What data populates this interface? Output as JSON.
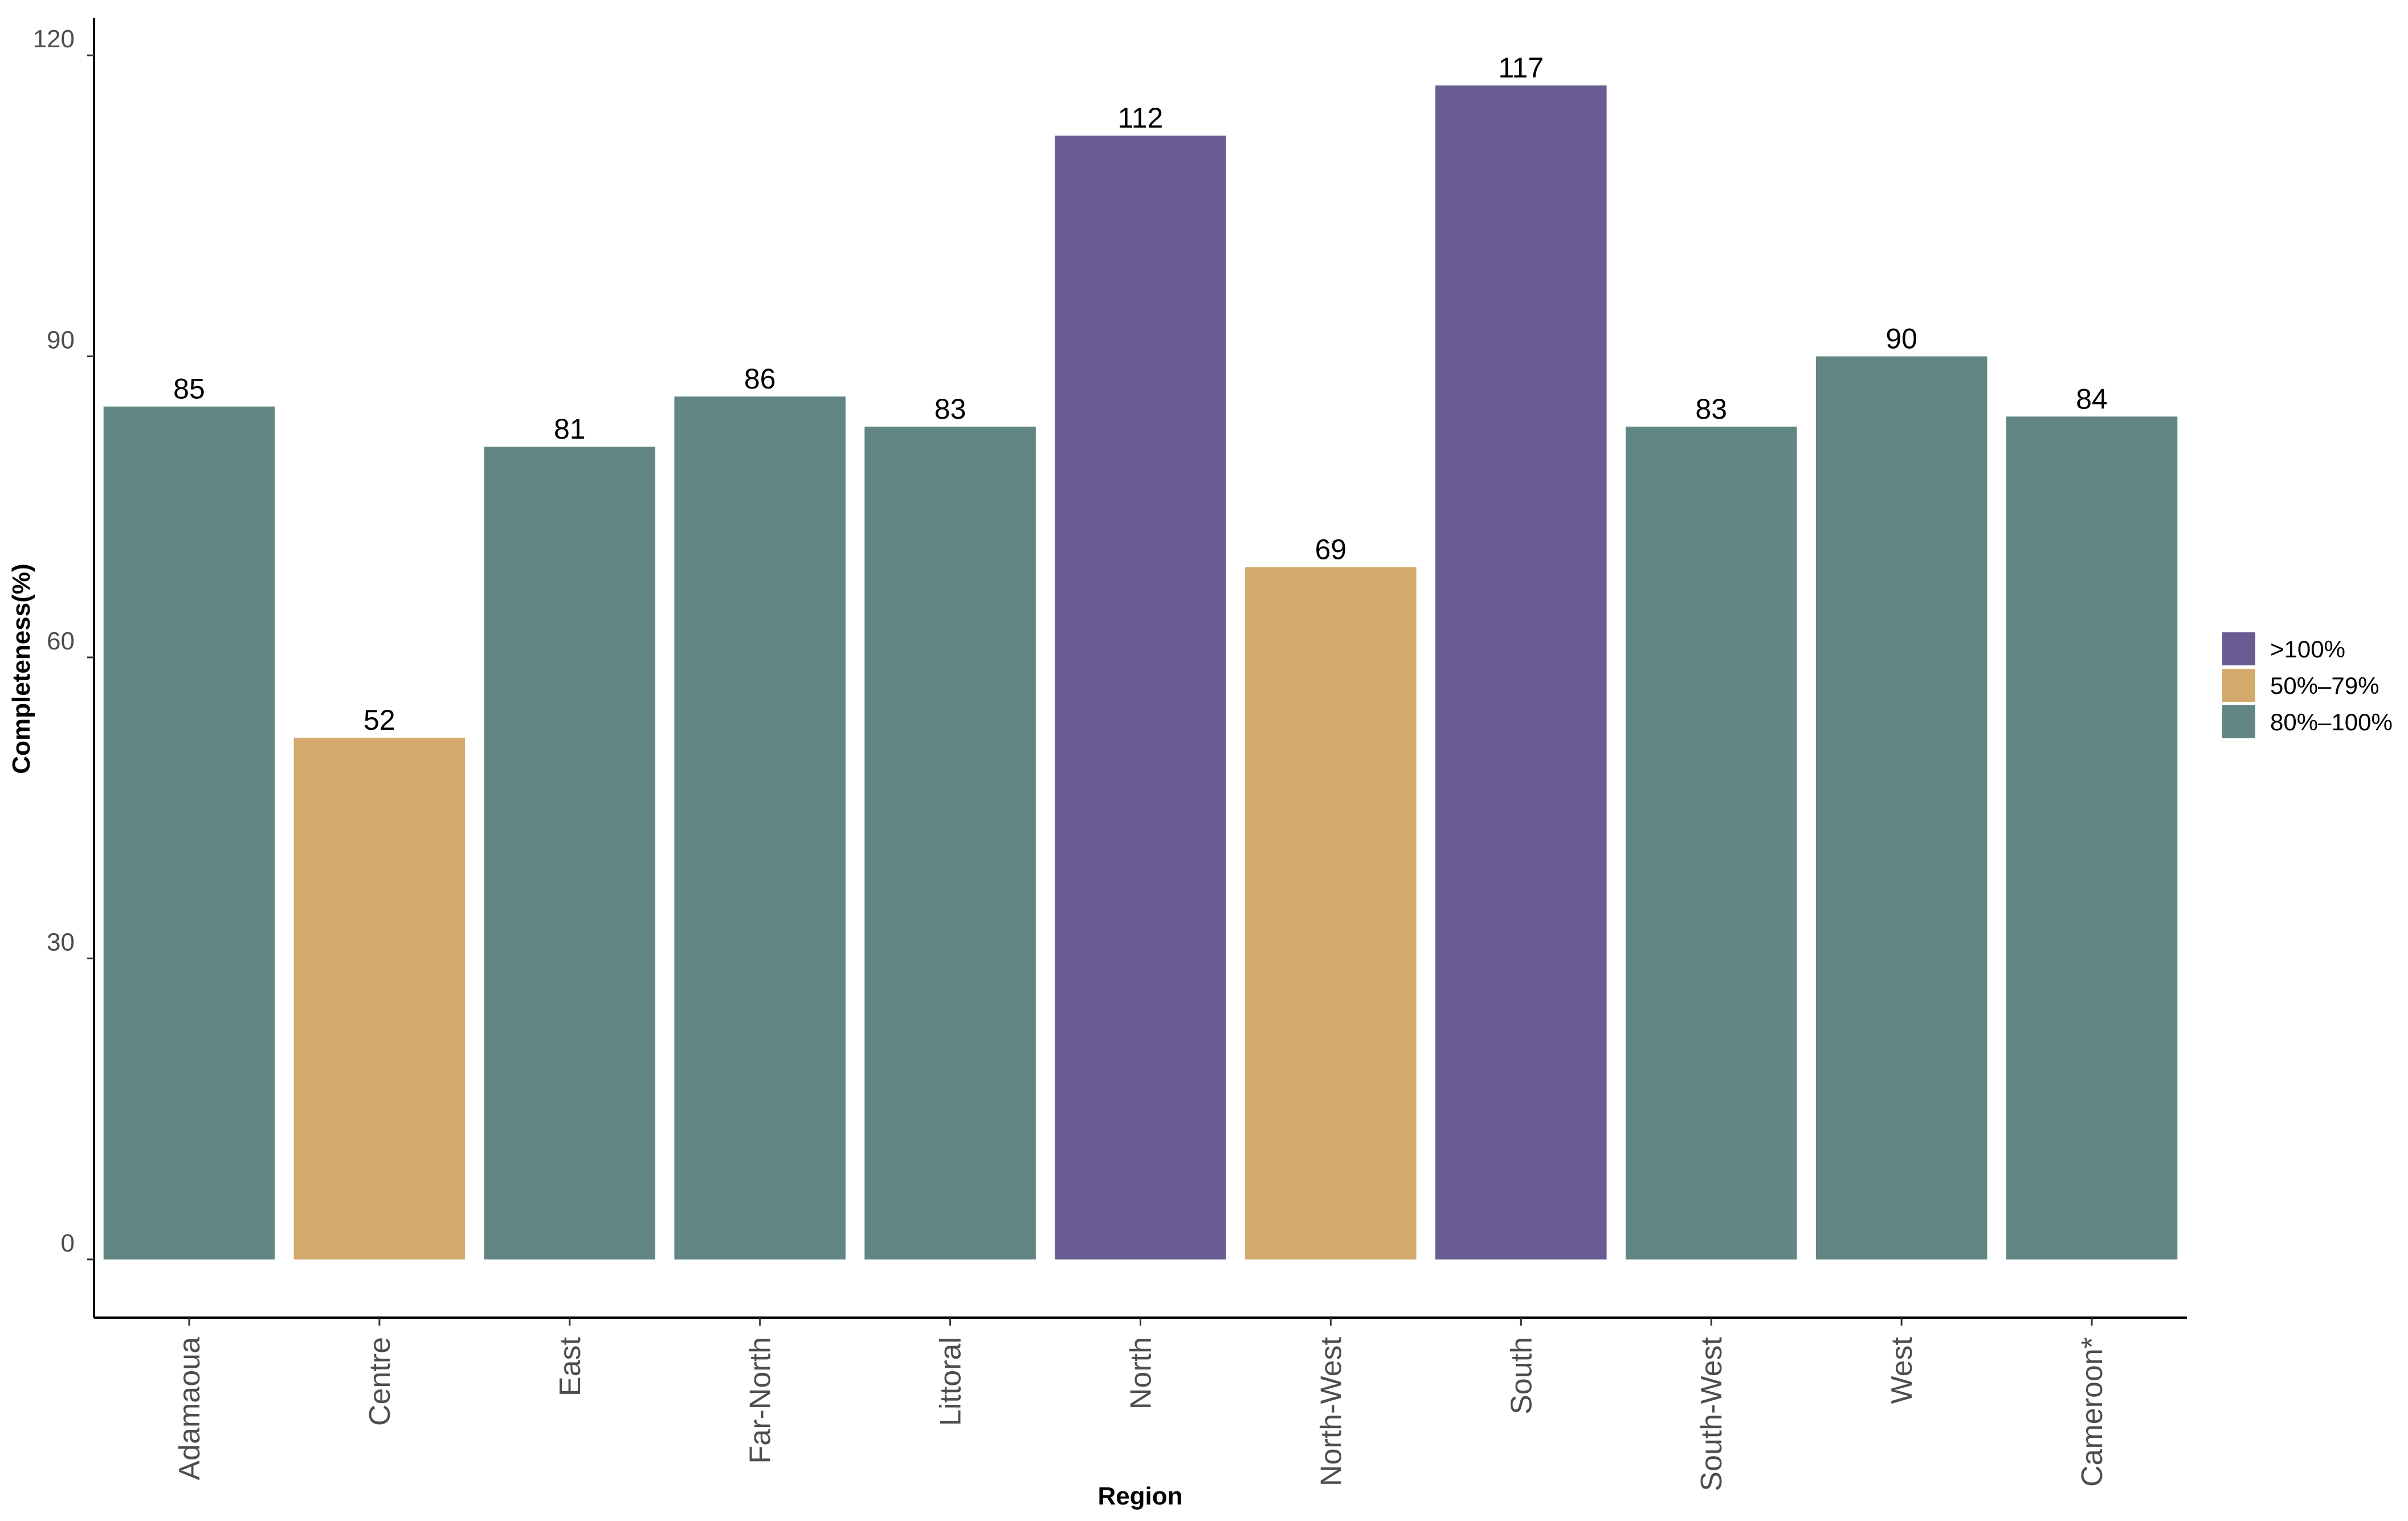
{
  "chart_data": {
    "type": "bar",
    "categories": [
      "Adamaoua",
      "Centre",
      "East",
      "Far-North",
      "Littoral",
      "North",
      "North-West",
      "South",
      "South-West",
      "West",
      "Cameroon*"
    ],
    "values": [
      85,
      52,
      81,
      86,
      83,
      112,
      69,
      117,
      83,
      90,
      84
    ],
    "value_labels": [
      "85",
      "52",
      "81",
      "86",
      "83",
      "112",
      "69",
      "117",
      "83",
      "90",
      "84"
    ],
    "bar_groups": [
      ">100%",
      "50%–79%",
      "80%–100%"
    ],
    "bar_group_index": [
      2,
      1,
      2,
      2,
      2,
      0,
      1,
      0,
      2,
      2,
      2
    ],
    "xlabel": "Region",
    "ylabel": "Completeness(%)",
    "ylim": [
      -5.8,
      123.7
    ],
    "yticks": [
      0,
      30,
      60,
      90,
      120
    ],
    "ytick_labels": [
      "0",
      "30",
      "60",
      "90",
      "120"
    ],
    "grid": false,
    "legend_position": "right",
    "legend": [
      {
        "label": ">100%",
        "color": "#6b5b93"
      },
      {
        "label": "50%–79%",
        "color": "#d4aa6c"
      },
      {
        "label": "80%–100%",
        "color": "#628684"
      }
    ]
  }
}
